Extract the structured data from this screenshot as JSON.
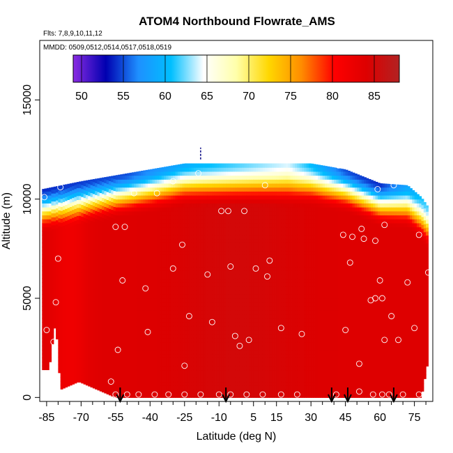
{
  "chart_data": {
    "type": "heatmap",
    "title": "ATOM4 Northbound Flowrate_AMS",
    "subtitle_flights": "Flts: 7,8,9,10,11,12",
    "subtitle_dates": "MMDD: 0509,0512,0514,0517,0518,0519",
    "xlabel": "Latitude (deg N)",
    "ylabel": "Altitude (m)",
    "xlim": [
      -88,
      83
    ],
    "ylim": [
      -200,
      18000
    ],
    "x_ticks": [
      -85,
      -70,
      -55,
      -40,
      -25,
      -10,
      5,
      15,
      30,
      45,
      60,
      75
    ],
    "x_tick_labels": [
      "-85",
      "-70",
      "-55",
      "-40",
      "-25",
      "-10",
      "5",
      "15",
      "30",
      "45",
      "60",
      "75"
    ],
    "x_minor_step": 5,
    "y_ticks": [
      0,
      5000,
      10000,
      15000
    ],
    "y_tick_labels": [
      "0",
      "5000",
      "10000",
      "15000"
    ],
    "colorbar": {
      "min": 49,
      "max": 88,
      "ticks": [
        50,
        55,
        60,
        65,
        70,
        75,
        80,
        85
      ],
      "tick_labels": [
        "50",
        "55",
        "60",
        "65",
        "70",
        "75",
        "80",
        "85"
      ],
      "colors": [
        "#8a2be2",
        "#0000b0",
        "#1e90ff",
        "#00bfff",
        "#ffffff",
        "#ffffaa",
        "#ffd700",
        "#ff8c00",
        "#ff0000",
        "#dd0000",
        "#b22222"
      ]
    },
    "series": [
      {
        "name": "column_bottom_altitude_m",
        "x": [
          -87,
          -84,
          -83,
          -82,
          -81,
          -79,
          -71,
          -55,
          78,
          81
        ],
        "values": [
          1400,
          1400,
          2200,
          3200,
          3800,
          400,
          800,
          0,
          0,
          1900
        ]
      },
      {
        "name": "curtain_top_altitude_m",
        "x": [
          -87,
          -70,
          -60,
          -45,
          -25,
          -10,
          0,
          15,
          30,
          45,
          60,
          72,
          78,
          81
        ],
        "values": [
          10500,
          10900,
          11100,
          11400,
          11800,
          11800,
          11800,
          11800,
          11800,
          11500,
          10800,
          10700,
          10100,
          9600
        ]
      },
      {
        "name": "flowrate_at_top",
        "x": [
          -87,
          -50,
          -20,
          0,
          20,
          45,
          60,
          81
        ],
        "values": [
          54,
          55,
          60,
          62,
          64,
          55,
          54,
          62
        ]
      },
      {
        "name": "flowrate_interior",
        "values": [
          82,
          84,
          85
        ]
      }
    ],
    "sample_points": [
      {
        "x": -86,
        "y": 10100
      },
      {
        "x": -85,
        "y": 3400
      },
      {
        "x": -79,
        "y": 10600
      },
      {
        "x": -80,
        "y": 7000
      },
      {
        "x": -81,
        "y": 4800
      },
      {
        "x": -82,
        "y": 2800
      },
      {
        "x": -82,
        "y": 1300
      },
      {
        "x": -57,
        "y": 800
      },
      {
        "x": -55,
        "y": 8600
      },
      {
        "x": -51,
        "y": 8600
      },
      {
        "x": -52,
        "y": 5900
      },
      {
        "x": -54,
        "y": 2400
      },
      {
        "x": -47,
        "y": 10300
      },
      {
        "x": -42,
        "y": 5500
      },
      {
        "x": -41,
        "y": 3300
      },
      {
        "x": -37,
        "y": 10300
      },
      {
        "x": -30,
        "y": 10900
      },
      {
        "x": -30,
        "y": 6500
      },
      {
        "x": -26,
        "y": 7700
      },
      {
        "x": -23,
        "y": 4100
      },
      {
        "x": -25,
        "y": 1600
      },
      {
        "x": -19,
        "y": 11300
      },
      {
        "x": -15,
        "y": 6200
      },
      {
        "x": -13,
        "y": 3800
      },
      {
        "x": -9,
        "y": 9400
      },
      {
        "x": -6,
        "y": 9400
      },
      {
        "x": -5,
        "y": 6600
      },
      {
        "x": -3,
        "y": 3100
      },
      {
        "x": -1,
        "y": 2600
      },
      {
        "x": 1,
        "y": 9400
      },
      {
        "x": 3,
        "y": 2900
      },
      {
        "x": 6,
        "y": 6500
      },
      {
        "x": 10,
        "y": 10700
      },
      {
        "x": 11,
        "y": 6100
      },
      {
        "x": 12,
        "y": 6900
      },
      {
        "x": 17,
        "y": 3500
      },
      {
        "x": 26,
        "y": 3200
      },
      {
        "x": 42,
        "y": 11700
      },
      {
        "x": 44,
        "y": 8200
      },
      {
        "x": 45,
        "y": 3400
      },
      {
        "x": 47,
        "y": 6800
      },
      {
        "x": 48,
        "y": 8100
      },
      {
        "x": 51,
        "y": 1700
      },
      {
        "x": 52,
        "y": 8500
      },
      {
        "x": 53,
        "y": 8000
      },
      {
        "x": 56,
        "y": 4900
      },
      {
        "x": 58,
        "y": 7900
      },
      {
        "x": 59,
        "y": 10500
      },
      {
        "x": 58,
        "y": 5000
      },
      {
        "x": 60,
        "y": 5900
      },
      {
        "x": 61,
        "y": 5000
      },
      {
        "x": 62,
        "y": 8700
      },
      {
        "x": 62,
        "y": 2900
      },
      {
        "x": 65,
        "y": 4100
      },
      {
        "x": 66,
        "y": 10700
      },
      {
        "x": 68,
        "y": 2900
      },
      {
        "x": 72,
        "y": 5800
      },
      {
        "x": 75,
        "y": 3500
      },
      {
        "x": 75,
        "y": 10800
      },
      {
        "x": 77,
        "y": 8200
      },
      {
        "x": 81,
        "y": 6300
      },
      {
        "x": -55,
        "y": 150
      },
      {
        "x": -50,
        "y": 150
      },
      {
        "x": -45,
        "y": 150
      },
      {
        "x": -38,
        "y": 150
      },
      {
        "x": -32,
        "y": 150
      },
      {
        "x": -25,
        "y": 150
      },
      {
        "x": -18,
        "y": 150
      },
      {
        "x": -10,
        "y": 150
      },
      {
        "x": -5,
        "y": 150
      },
      {
        "x": 2,
        "y": 150
      },
      {
        "x": 9,
        "y": 150
      },
      {
        "x": 17,
        "y": 150
      },
      {
        "x": 24,
        "y": 150
      },
      {
        "x": 41,
        "y": 150
      },
      {
        "x": 51,
        "y": 300
      },
      {
        "x": 57,
        "y": 150
      },
      {
        "x": 61,
        "y": 150
      },
      {
        "x": 64,
        "y": 150
      },
      {
        "x": 70,
        "y": 150
      },
      {
        "x": 77,
        "y": 150
      }
    ],
    "profile_arrows_lat": [
      -53,
      -7,
      39,
      46,
      66
    ],
    "dashed_marker": {
      "x": -18,
      "y_from": 12000,
      "y_to": 12600
    }
  }
}
